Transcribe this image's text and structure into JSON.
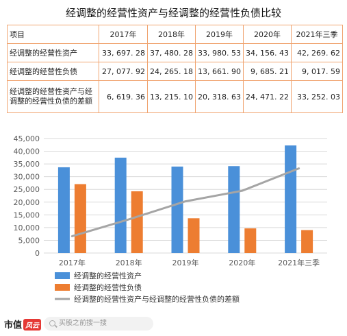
{
  "title": "经调整的经营性资产与经调整的经营性负债比较",
  "table": {
    "header": [
      "项目",
      "2017年",
      "2018年",
      "2019年",
      "2020年",
      "2021年三季"
    ],
    "rows": [
      {
        "label": "经调整的经营性资产",
        "values": [
          "33, 697. 28",
          "37, 480. 28",
          "33, 980. 53",
          "34, 156. 43",
          "42, 269. 62"
        ]
      },
      {
        "label": "经调整的经营性负债",
        "values": [
          "27, 077. 92",
          "24, 265. 18",
          "13, 661. 90",
          "9, 685. 21",
          "9, 017. 59"
        ]
      },
      {
        "label": "经调整的经营性资产与经调整的经营性负债的差额",
        "values": [
          "6, 619. 36",
          "13, 215. 10",
          "20, 318. 63",
          "24, 471. 22",
          "33, 252. 03"
        ]
      }
    ]
  },
  "chart_data": {
    "type": "bar",
    "categories": [
      "2017年",
      "2018年",
      "2019年",
      "2020年",
      "2021年三季"
    ],
    "series": [
      {
        "name": "经调整的经营性资产",
        "type": "bar",
        "color": "#4a90d9",
        "values": [
          33697.28,
          37480.28,
          33980.53,
          34156.43,
          42269.62
        ]
      },
      {
        "name": "经调整的经营性负债",
        "type": "bar",
        "color": "#ed7d31",
        "values": [
          27077.92,
          24265.18,
          13661.9,
          9685.21,
          9017.59
        ]
      },
      {
        "name": "经调整的经营性资产与经调整的经营性负债的差额",
        "type": "line",
        "color": "#a5a5a5",
        "values": [
          6619.36,
          13215.1,
          20318.63,
          24471.22,
          33252.03
        ]
      }
    ],
    "ylim": [
      0,
      45000
    ],
    "yticks": [
      0,
      5000,
      10000,
      15000,
      20000,
      25000,
      30000,
      35000,
      40000,
      45000
    ],
    "ytick_labels": [
      "0",
      "5,000",
      "10,000",
      "15,000",
      "20,000",
      "25,000",
      "30,000",
      "35,000",
      "40,000",
      "45,000"
    ],
    "grid": true,
    "legend": "bottom-left"
  },
  "footer": {
    "logo_text": "市值",
    "logo_badge": "风云",
    "search_placeholder": "买股之前搜一搜"
  }
}
